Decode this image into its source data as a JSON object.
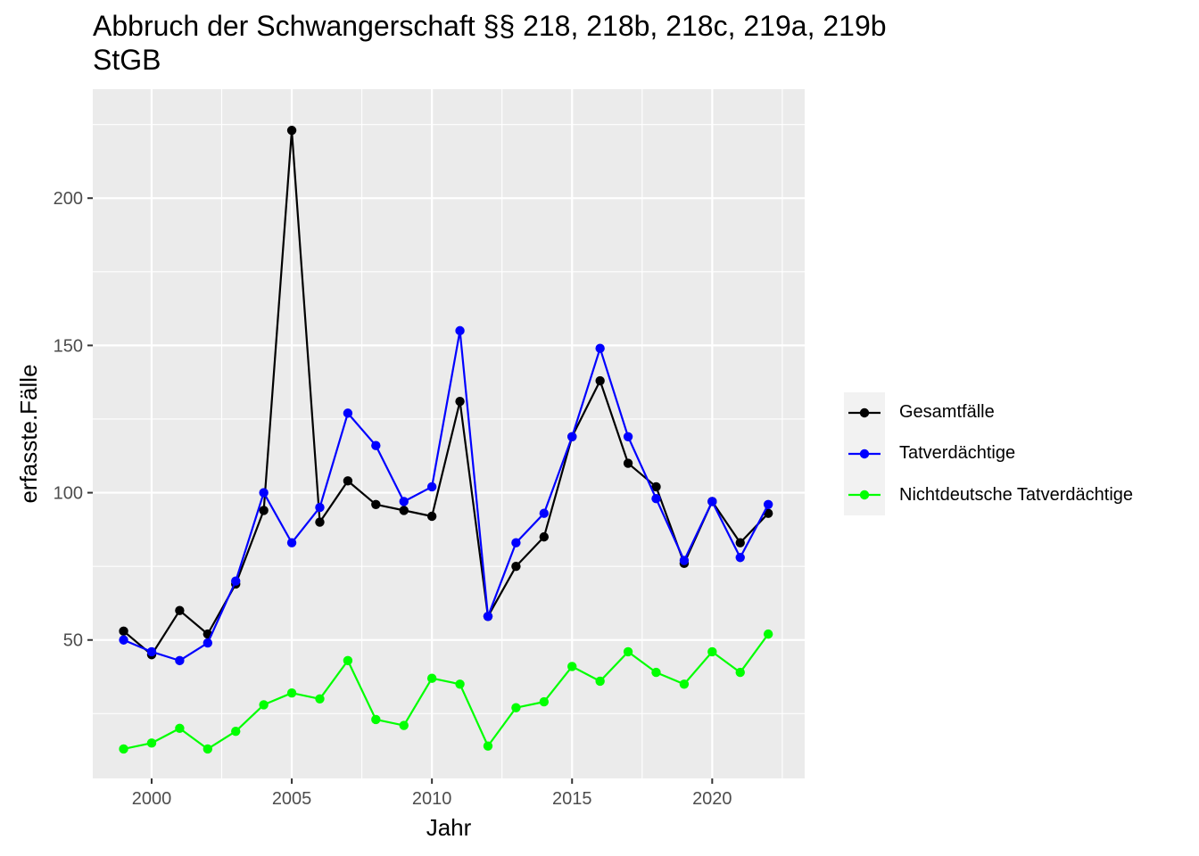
{
  "chart_data": {
    "type": "line",
    "title": "Abbruch der Schwangerschaft §§ 218, 218b, 218c, 219a, 219b\nStGB",
    "xlabel": "Jahr",
    "ylabel": "erfasste.Fälle",
    "x": [
      1999,
      2000,
      2001,
      2002,
      2003,
      2004,
      2005,
      2006,
      2007,
      2008,
      2009,
      2010,
      2011,
      2012,
      2013,
      2014,
      2015,
      2016,
      2017,
      2018,
      2019,
      2020,
      2021,
      2022
    ],
    "xlim": [
      1997.9,
      2023.3
    ],
    "ylim": [
      3,
      237
    ],
    "xticks": [
      2000,
      2005,
      2010,
      2015,
      2020
    ],
    "yticks": [
      50,
      100,
      150,
      200
    ],
    "grid": true,
    "legend_position": "right",
    "series": [
      {
        "name": "Gesamtfälle",
        "color": "#000000",
        "values": [
          53,
          45,
          60,
          52,
          69,
          94,
          223,
          90,
          104,
          96,
          94,
          92,
          131,
          58,
          75,
          85,
          119,
          138,
          110,
          102,
          76,
          97,
          83,
          93
        ]
      },
      {
        "name": "Tatverdächtige",
        "color": "#0000ff",
        "values": [
          50,
          46,
          43,
          49,
          70,
          100,
          83,
          95,
          127,
          116,
          97,
          102,
          155,
          58,
          83,
          93,
          119,
          149,
          119,
          98,
          77,
          97,
          78,
          96
        ]
      },
      {
        "name": "Nichtdeutsche Tatverdächtige",
        "color": "#00ff00",
        "values": [
          13,
          15,
          20,
          13,
          19,
          28,
          32,
          30,
          43,
          23,
          21,
          37,
          35,
          14,
          27,
          29,
          41,
          36,
          46,
          39,
          35,
          46,
          39,
          52
        ]
      }
    ]
  }
}
